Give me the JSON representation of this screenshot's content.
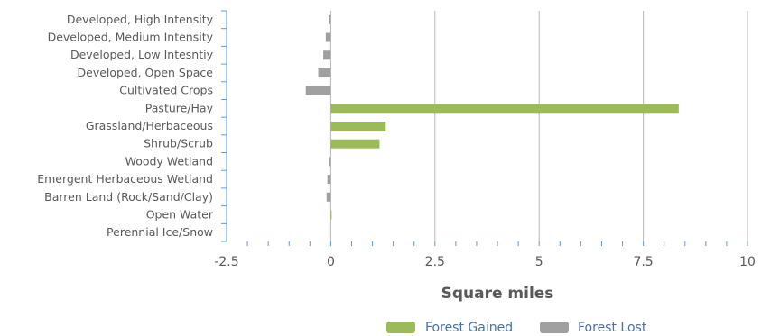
{
  "chart_data": {
    "type": "bar",
    "orientation": "horizontal",
    "categories": [
      "Developed, High Intensity",
      "Developed, Medium Intensity",
      "Developed, Low Intesntiy",
      "Developed, Open Space",
      "Cultivated Crops",
      "Pasture/Hay",
      "Grassland/Herbaceous",
      "Shrub/Scrub",
      "Woody Wetland",
      "Emergent Herbaceous Wetland",
      "Barren Land (Rock/Sand/Clay)",
      "Open Water",
      "Perennial Ice/Snow"
    ],
    "series": [
      {
        "name": "Forest Gained",
        "color": "#9bbb59",
        "values": [
          0,
          0,
          0,
          0,
          0,
          8.35,
          1.32,
          1.17,
          0,
          0,
          0,
          0.02,
          0
        ]
      },
      {
        "name": "Forest Lost",
        "color": "#a0a0a0",
        "values": [
          -0.05,
          -0.12,
          -0.18,
          -0.3,
          -0.6,
          0,
          0,
          0,
          -0.04,
          -0.08,
          -0.1,
          0,
          0
        ]
      }
    ],
    "xlabel": "Square miles",
    "xlim": [
      -2.5,
      10
    ],
    "xticks": [
      "-2.5",
      "0",
      "2.5",
      "5",
      "7.5",
      "10"
    ],
    "grid": true,
    "legend_position": "bottom"
  }
}
